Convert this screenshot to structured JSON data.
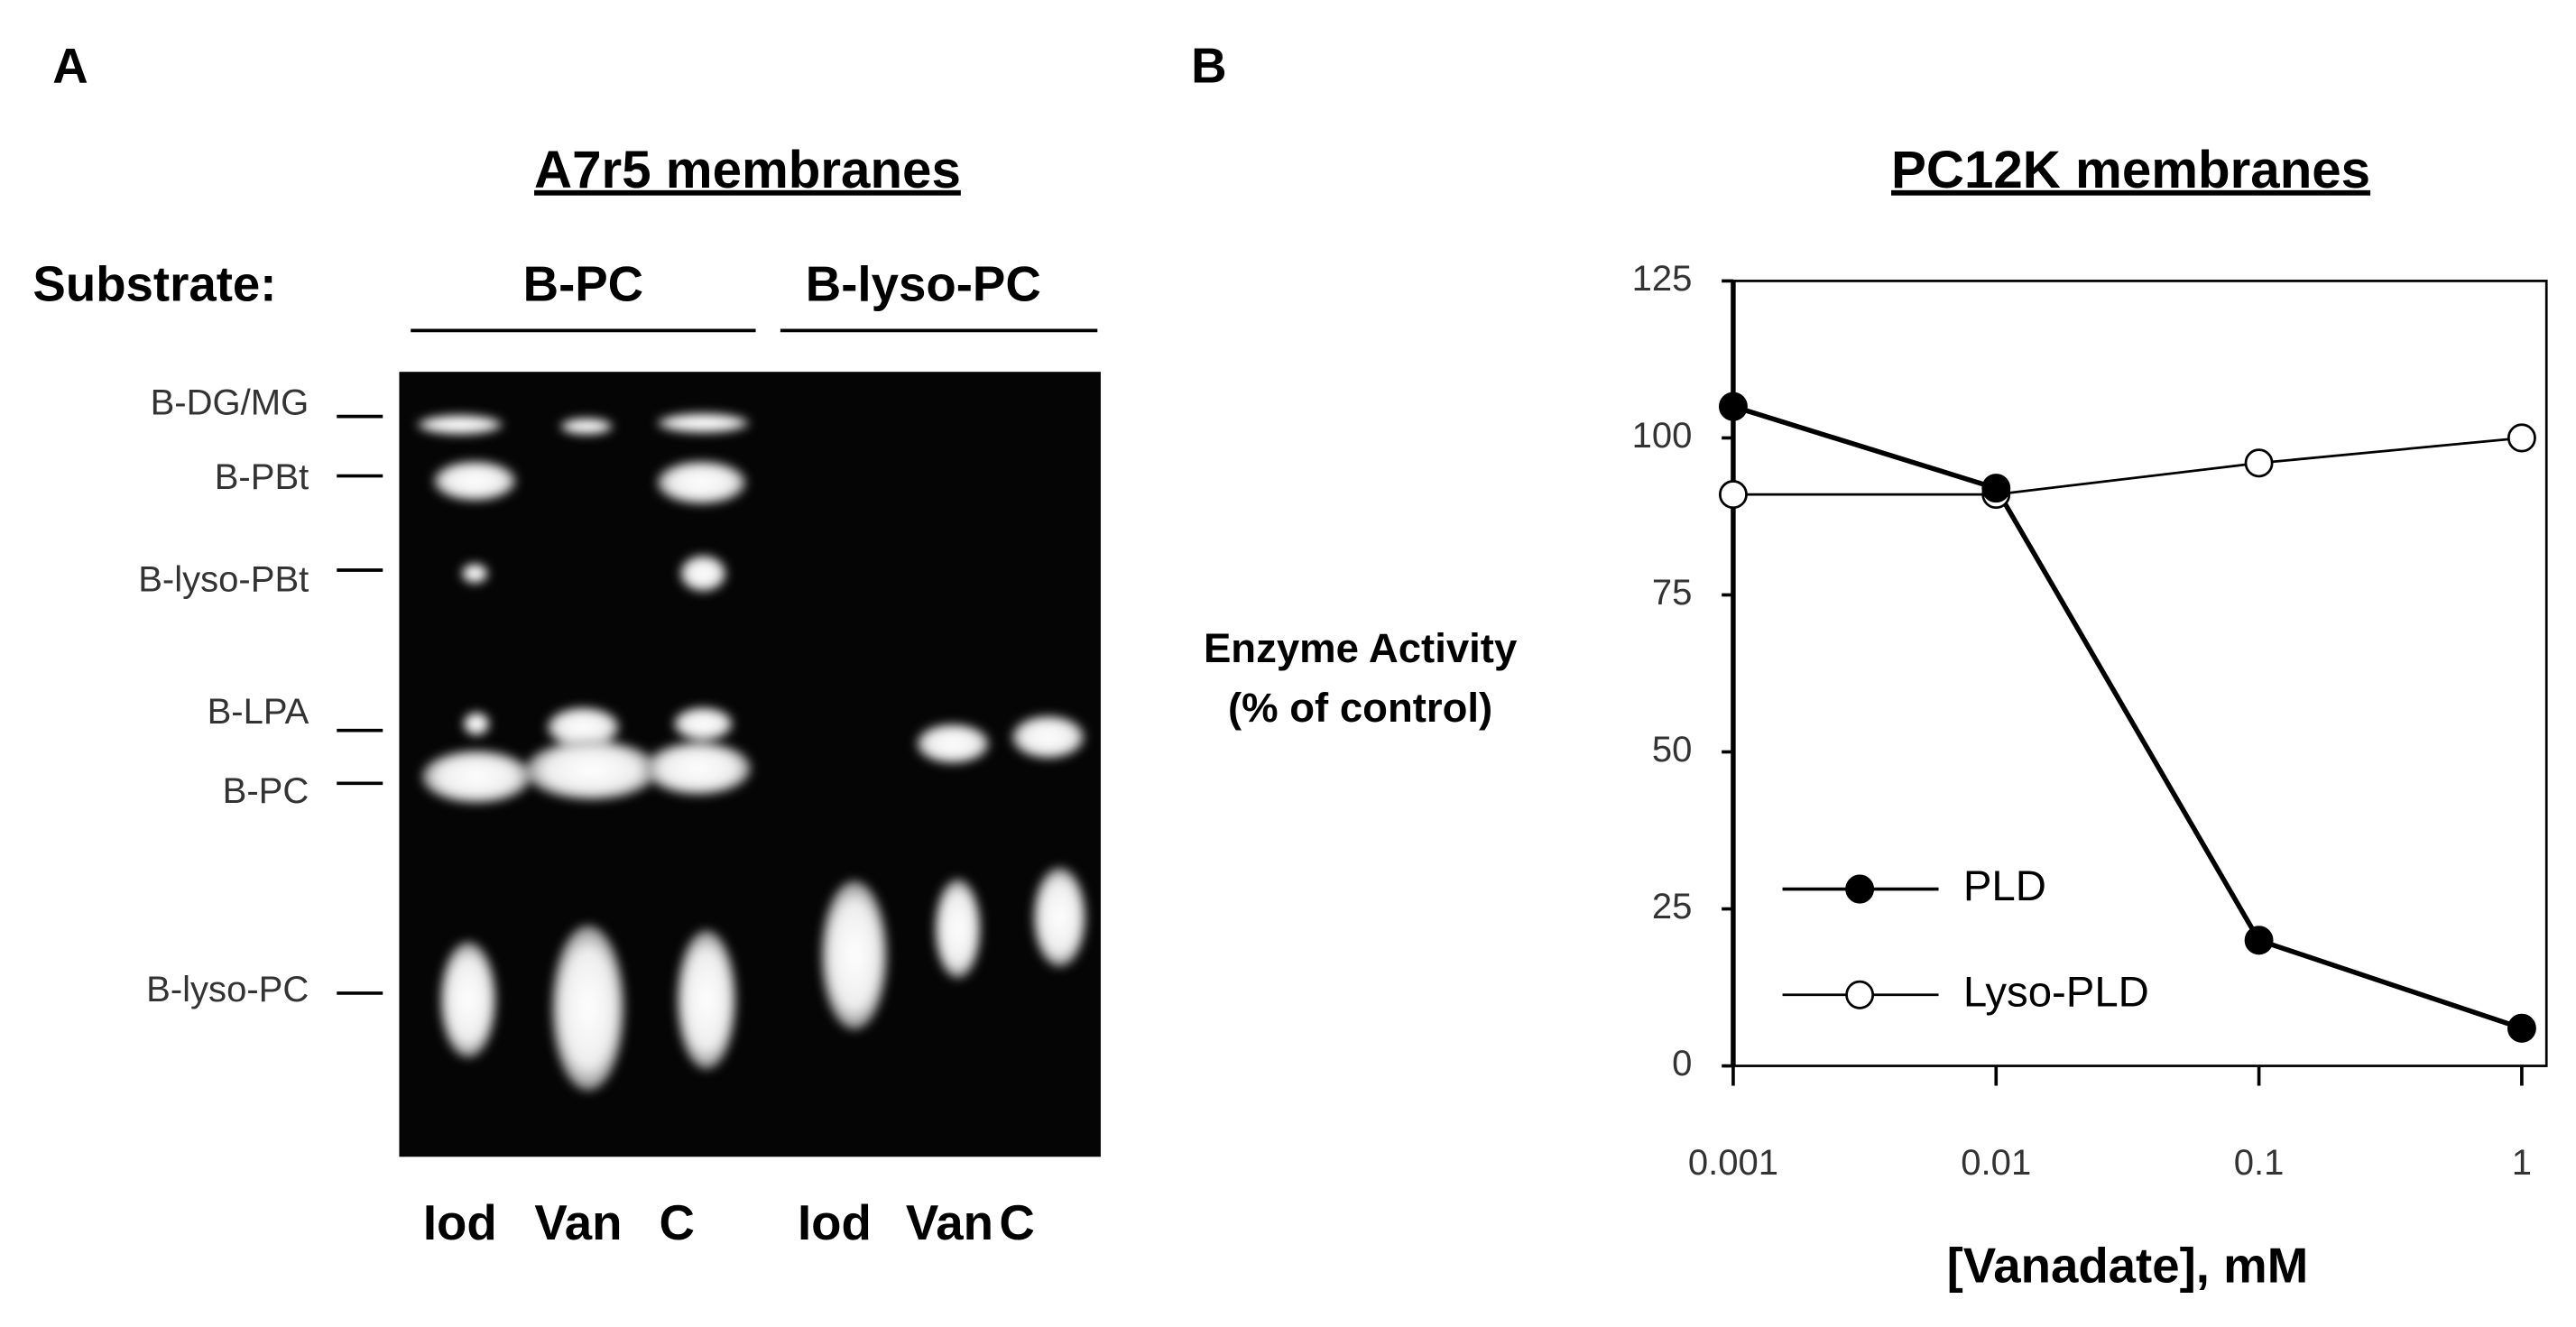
{
  "panel_a": {
    "label": "A",
    "title": "A7r5 membranes",
    "substrate_label": "Substrate:",
    "groups": [
      "B-PC",
      "B-lyso-PC"
    ],
    "bands": [
      "B-DG/MG",
      "B-PBt",
      "B-lyso-PBt",
      "B-LPA",
      "B-PC",
      "B-lyso-PC"
    ],
    "lanes": [
      "Iod",
      "Van",
      "C",
      "Iod",
      "Van",
      "C"
    ]
  },
  "chart_data": {
    "type": "line",
    "panel_label": "B",
    "title": "PC12K membranes",
    "ylabel": [
      "Enzyme Activity",
      "(% of control)"
    ],
    "xlabel": "[Vanadate], mM",
    "x": [
      0.001,
      0.01,
      0.1,
      1
    ],
    "xscale": "log",
    "xlim": [
      0.001,
      1
    ],
    "xticks": [
      0.001,
      0.01,
      0.1,
      1
    ],
    "ylim": [
      0,
      125
    ],
    "yticks": [
      0,
      25,
      50,
      75,
      100,
      125
    ],
    "legend": "lower left",
    "series": [
      {
        "name": "PLD",
        "color": "#000000",
        "marker": "filled",
        "values": [
          105,
          92,
          20,
          6
        ]
      },
      {
        "name": "Lyso-PLD",
        "color": "#000000",
        "marker": "open",
        "values": [
          91,
          91,
          96,
          100
        ]
      }
    ]
  }
}
